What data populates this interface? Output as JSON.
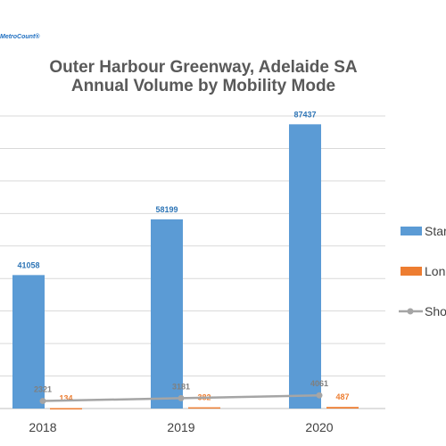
{
  "brand": "MetroCount®",
  "chart_data": {
    "type": "bar",
    "title_line1": "Outer Harbour Greenway, Adelaide SA",
    "title_line2": "Annual Volume by Mobility Mode",
    "categories": [
      "2018",
      "2019",
      "2020"
    ],
    "series": [
      {
        "name": "Star",
        "type": "bar",
        "values": [
          41058,
          58199,
          87437
        ],
        "color": "#5b9bd5",
        "label_color": "#2e75b6"
      },
      {
        "name": "Lon",
        "type": "bar",
        "values": [
          134,
          382,
          487
        ],
        "color": "#ed7d31",
        "label_color": "#ed7d31"
      },
      {
        "name": "Sho",
        "type": "line",
        "values": [
          2321,
          3181,
          4061
        ],
        "color": "#a5a5a5",
        "label_color": "#7f7f7f"
      }
    ],
    "ylim": [
      0,
      90000
    ],
    "grid": true,
    "legend_position": "right"
  }
}
